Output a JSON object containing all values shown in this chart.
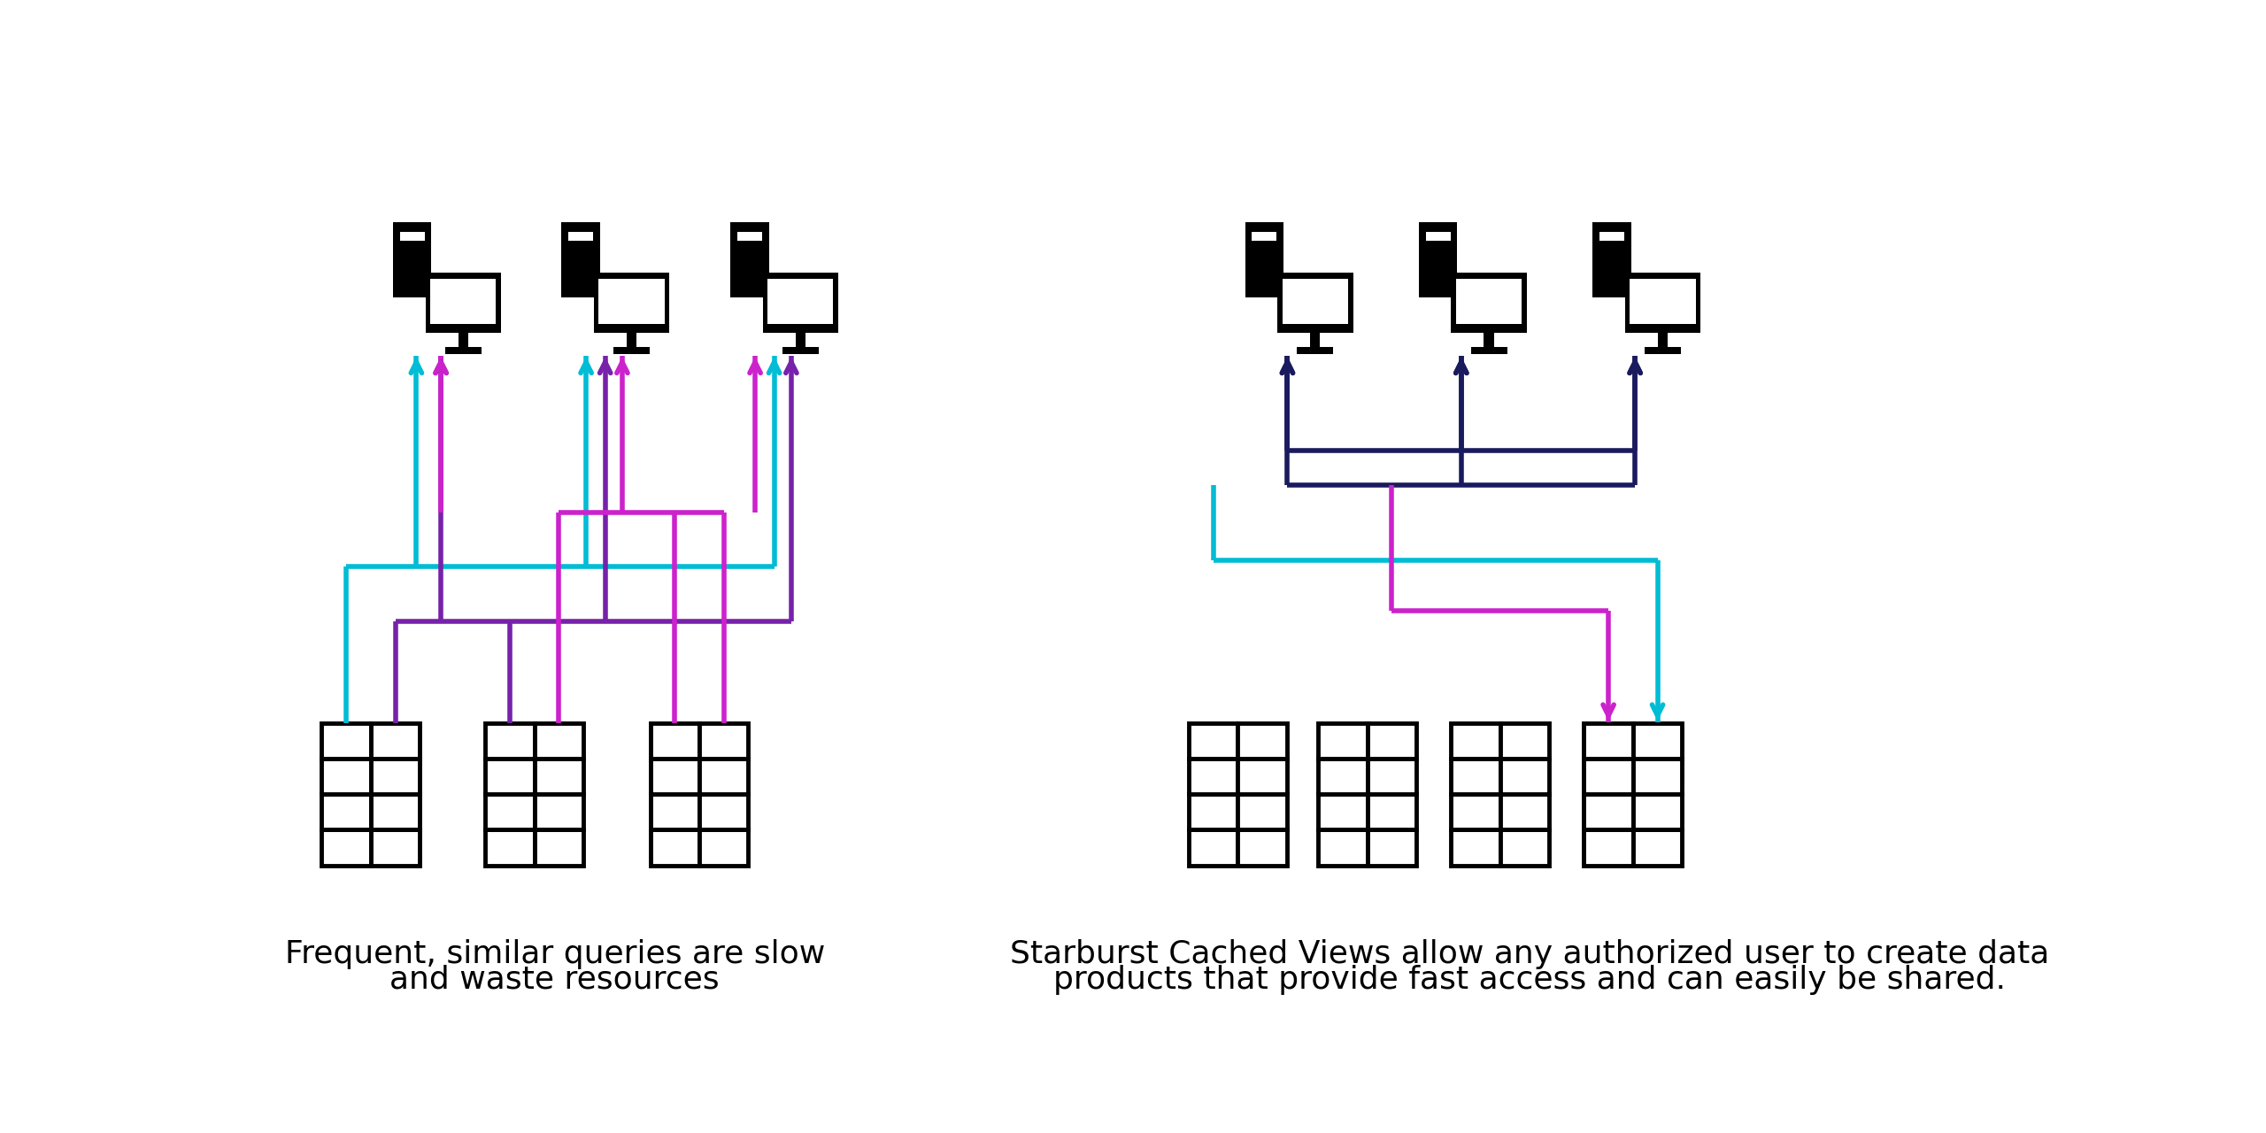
{
  "bg_color": "#ffffff",
  "left_caption_line1": "Frequent, similar queries are slow",
  "left_caption_line2": "and waste resources",
  "right_caption_line1": "Starburst Cached Views allow any authorized user to create data",
  "right_caption_line2": "products that provide fast access and can easily be shared.",
  "colors": {
    "cyan": "#00bcd4",
    "magenta": "#cc22cc",
    "purple": "#7722aa",
    "navy": "#1a1a5e",
    "black": "#000000",
    "white": "#ffffff"
  },
  "lw": 3.5,
  "arrow_scale": 20
}
